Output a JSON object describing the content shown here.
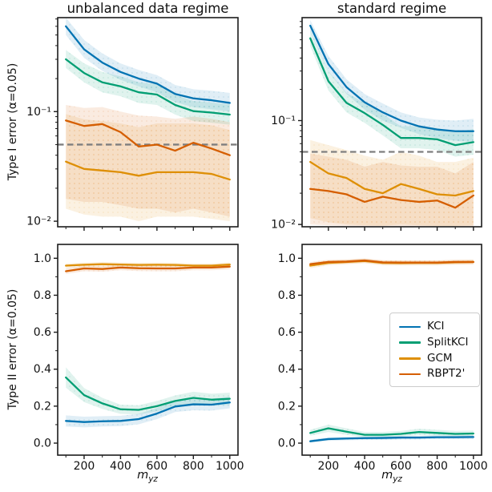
{
  "figure": {
    "xlabel": {
      "main": "m",
      "sub": "yz"
    },
    "alpha_threshold": 0.05,
    "colors": {
      "kci": "#0173b2",
      "splitkci": "#029e73",
      "gcm": "#de8f05",
      "rbpt2": "#d55e00",
      "alpha_dashed_line": "#7f7f7f",
      "axes": "#1c1c1c"
    }
  },
  "legend": {
    "entries": [
      {
        "label": "KCI",
        "color": "#0173b2"
      },
      {
        "label": "SplitKCI",
        "color": "#029e73"
      },
      {
        "label": "GCM",
        "color": "#de8f05"
      },
      {
        "label": "RBPT2'",
        "color": "#d55e00"
      }
    ]
  },
  "chart_data": [
    {
      "panel": "tl",
      "type": "line",
      "title": "unbalanced data regime",
      "ylabel": "Type I error (α=0.05)",
      "yscale": "log",
      "xlim": [
        55,
        1045
      ],
      "ylim": [
        0.0089,
        0.72
      ],
      "x": [
        100,
        200,
        300,
        400,
        500,
        600,
        700,
        800,
        900,
        1000
      ],
      "xticks": [
        200,
        400,
        600,
        800,
        1000
      ],
      "xminorticks": [
        100,
        300,
        500,
        700,
        900
      ],
      "xtick_labels": null,
      "yticks": [
        0.1,
        0.01
      ],
      "ytick_labels": [
        "10⁻¹",
        "10⁻²"
      ],
      "alpha_line": 0.05,
      "series": [
        {
          "name": "KCI",
          "color": "#0173b2",
          "values": [
            0.6,
            0.37,
            0.28,
            0.23,
            0.2,
            0.18,
            0.145,
            0.132,
            0.127,
            0.12
          ],
          "band_lower": [
            0.5,
            0.31,
            0.235,
            0.195,
            0.17,
            0.15,
            0.122,
            0.11,
            0.105,
            0.1
          ],
          "band_upper": [
            0.72,
            0.45,
            0.34,
            0.275,
            0.24,
            0.215,
            0.175,
            0.16,
            0.155,
            0.148
          ]
        },
        {
          "name": "SplitKCI",
          "color": "#029e73",
          "values": [
            0.3,
            0.225,
            0.185,
            0.17,
            0.15,
            0.143,
            0.115,
            0.101,
            0.098,
            0.094
          ],
          "band_lower": [
            0.25,
            0.185,
            0.15,
            0.138,
            0.12,
            0.115,
            0.094,
            0.082,
            0.079,
            0.076
          ],
          "band_upper": [
            0.365,
            0.275,
            0.23,
            0.21,
            0.185,
            0.178,
            0.142,
            0.125,
            0.121,
            0.117
          ]
        },
        {
          "name": "GCM",
          "color": "#de8f05",
          "values": [
            0.035,
            0.03,
            0.029,
            0.028,
            0.026,
            0.028,
            0.028,
            0.028,
            0.027,
            0.024
          ],
          "band_lower": [
            0.013,
            0.0115,
            0.011,
            0.011,
            0.01,
            0.011,
            0.011,
            0.011,
            0.0105,
            0.01
          ],
          "band_upper": [
            0.095,
            0.085,
            0.082,
            0.078,
            0.072,
            0.078,
            0.078,
            0.078,
            0.075,
            0.068
          ]
        },
        {
          "name": "RBPT2'",
          "color": "#d55e00",
          "values": [
            0.083,
            0.074,
            0.077,
            0.065,
            0.048,
            0.05,
            0.044,
            0.052,
            0.046,
            0.04
          ],
          "band_lower": [
            0.016,
            0.015,
            0.015,
            0.014,
            0.013,
            0.013,
            0.012,
            0.013,
            0.012,
            0.011
          ],
          "band_upper": [
            0.115,
            0.108,
            0.11,
            0.1,
            0.092,
            0.09,
            0.086,
            0.09,
            0.086,
            0.08
          ]
        }
      ]
    },
    {
      "panel": "tr",
      "type": "line",
      "title": "standard regime",
      "ylabel": "",
      "yscale": "log",
      "xlim": [
        55,
        1045
      ],
      "ylim": [
        0.0095,
        0.98
      ],
      "x": [
        100,
        200,
        300,
        400,
        500,
        600,
        700,
        800,
        900,
        1000
      ],
      "xticks": [
        200,
        400,
        600,
        800,
        1000
      ],
      "xminorticks": [
        100,
        300,
        500,
        700,
        900
      ],
      "xtick_labels": null,
      "yticks": [
        0.1,
        0.01
      ],
      "ytick_labels": [
        "10⁻¹",
        "10⁻²"
      ],
      "alpha_line": 0.05,
      "series": [
        {
          "name": "KCI",
          "color": "#0173b2",
          "values": [
            0.82,
            0.35,
            0.21,
            0.15,
            0.12,
            0.1,
            0.088,
            0.082,
            0.079,
            0.079
          ],
          "band_lower": [
            0.72,
            0.295,
            0.18,
            0.128,
            0.1,
            0.085,
            0.074,
            0.068,
            0.064,
            0.062
          ],
          "band_upper": [
            0.93,
            0.42,
            0.25,
            0.18,
            0.146,
            0.12,
            0.107,
            0.102,
            0.1,
            0.104
          ]
        },
        {
          "name": "SplitKCI",
          "color": "#029e73",
          "values": [
            0.62,
            0.24,
            0.148,
            0.118,
            0.091,
            0.068,
            0.068,
            0.066,
            0.058,
            0.062
          ],
          "band_lower": [
            0.52,
            0.195,
            0.12,
            0.095,
            0.072,
            0.054,
            0.054,
            0.052,
            0.045,
            0.047
          ],
          "band_upper": [
            0.74,
            0.3,
            0.185,
            0.148,
            0.116,
            0.088,
            0.088,
            0.085,
            0.077,
            0.083
          ]
        },
        {
          "name": "GCM",
          "color": "#de8f05",
          "values": [
            0.04,
            0.031,
            0.028,
            0.022,
            0.02,
            0.0245,
            0.022,
            0.0195,
            0.019,
            0.021
          ],
          "band_lower": [
            0.0115,
            0.0105,
            0.01,
            0.0098,
            0.0097,
            0.01,
            0.0098,
            0.0097,
            0.0097,
            0.0098
          ],
          "band_upper": [
            0.065,
            0.058,
            0.052,
            0.046,
            0.042,
            0.05,
            0.046,
            0.04,
            0.04,
            0.044
          ]
        },
        {
          "name": "RBPT2'",
          "color": "#d55e00",
          "values": [
            0.022,
            0.021,
            0.0195,
            0.0165,
            0.0185,
            0.0172,
            0.0165,
            0.017,
            0.0145,
            0.019
          ],
          "band_lower": [
            0.01,
            0.0098,
            0.0097,
            0.0096,
            0.0097,
            0.0096,
            0.0096,
            0.0096,
            0.0096,
            0.0096
          ],
          "band_upper": [
            0.048,
            0.045,
            0.042,
            0.036,
            0.04,
            0.037,
            0.036,
            0.036,
            0.031,
            0.04
          ]
        }
      ]
    },
    {
      "panel": "bl",
      "type": "line",
      "title": "",
      "ylabel": "Type II error (α=0.05)",
      "yscale": "linear",
      "xlim": [
        55,
        1045
      ],
      "ylim": [
        -0.065,
        1.075
      ],
      "x": [
        100,
        200,
        300,
        400,
        500,
        600,
        700,
        800,
        900,
        1000
      ],
      "xticks": [
        200,
        400,
        600,
        800,
        1000
      ],
      "xminorticks": [
        100,
        300,
        500,
        700,
        900
      ],
      "xtick_labels": [
        "200",
        "400",
        "600",
        "800",
        "1000"
      ],
      "yticks": [
        0.0,
        0.2,
        0.4,
        0.6,
        0.8,
        1.0
      ],
      "ytick_labels": [
        "0.0",
        "0.2",
        "0.4",
        "0.6",
        "0.8",
        "1.0"
      ],
      "yminorticks": [
        0.1,
        0.3,
        0.5,
        0.7,
        0.9
      ],
      "alpha_line": null,
      "series": [
        {
          "name": "KCI",
          "color": "#0173b2",
          "values": [
            0.12,
            0.114,
            0.118,
            0.12,
            0.13,
            0.16,
            0.198,
            0.21,
            0.208,
            0.22
          ],
          "band_lower": [
            0.09,
            0.085,
            0.09,
            0.092,
            0.102,
            0.13,
            0.168,
            0.178,
            0.176,
            0.188
          ],
          "band_upper": [
            0.15,
            0.143,
            0.146,
            0.148,
            0.158,
            0.19,
            0.228,
            0.242,
            0.24,
            0.252
          ]
        },
        {
          "name": "SplitKCI",
          "color": "#029e73",
          "values": [
            0.355,
            0.26,
            0.215,
            0.183,
            0.18,
            0.2,
            0.228,
            0.245,
            0.235,
            0.24
          ],
          "band_lower": [
            0.3,
            0.222,
            0.185,
            0.158,
            0.155,
            0.172,
            0.198,
            0.212,
            0.203,
            0.207
          ],
          "band_upper": [
            0.41,
            0.298,
            0.245,
            0.208,
            0.205,
            0.228,
            0.258,
            0.278,
            0.267,
            0.273
          ]
        },
        {
          "name": "GCM",
          "color": "#de8f05",
          "values": [
            0.96,
            0.965,
            0.968,
            0.966,
            0.964,
            0.965,
            0.964,
            0.96,
            0.96,
            0.966
          ],
          "band_lower": [
            0.947,
            0.952,
            0.955,
            0.953,
            0.951,
            0.952,
            0.951,
            0.947,
            0.947,
            0.953
          ],
          "band_upper": [
            0.972,
            0.977,
            0.98,
            0.978,
            0.976,
            0.977,
            0.976,
            0.972,
            0.972,
            0.978
          ]
        },
        {
          "name": "RBPT2'",
          "color": "#d55e00",
          "values": [
            0.93,
            0.945,
            0.942,
            0.95,
            0.946,
            0.945,
            0.945,
            0.95,
            0.95,
            0.955
          ],
          "band_lower": [
            0.915,
            0.93,
            0.927,
            0.935,
            0.931,
            0.93,
            0.93,
            0.935,
            0.935,
            0.94
          ],
          "band_upper": [
            0.945,
            0.96,
            0.957,
            0.965,
            0.961,
            0.96,
            0.96,
            0.965,
            0.965,
            0.97
          ]
        }
      ]
    },
    {
      "panel": "br",
      "type": "line",
      "title": "",
      "ylabel": "",
      "yscale": "linear",
      "xlim": [
        55,
        1045
      ],
      "ylim": [
        -0.065,
        1.075
      ],
      "x": [
        100,
        200,
        300,
        400,
        500,
        600,
        700,
        800,
        900,
        1000
      ],
      "xticks": [
        200,
        400,
        600,
        800,
        1000
      ],
      "xminorticks": [
        100,
        300,
        500,
        700,
        900
      ],
      "xtick_labels": [
        "200",
        "400",
        "600",
        "800",
        "1000"
      ],
      "yticks": [
        0.0,
        0.2,
        0.4,
        0.6,
        0.8,
        1.0
      ],
      "ytick_labels": [
        "0.0",
        "0.2",
        "0.4",
        "0.6",
        "0.8",
        "1.0"
      ],
      "yminorticks": [
        0.1,
        0.3,
        0.5,
        0.7,
        0.9
      ],
      "alpha_line": null,
      "series": [
        {
          "name": "KCI",
          "color": "#0173b2",
          "values": [
            0.01,
            0.022,
            0.025,
            0.027,
            0.028,
            0.03,
            0.03,
            0.032,
            0.032,
            0.033
          ],
          "band_lower": [
            0.004,
            0.012,
            0.015,
            0.017,
            0.018,
            0.02,
            0.02,
            0.022,
            0.022,
            0.022
          ],
          "band_upper": [
            0.018,
            0.032,
            0.035,
            0.037,
            0.038,
            0.04,
            0.04,
            0.042,
            0.042,
            0.044
          ]
        },
        {
          "name": "SplitKCI",
          "color": "#029e73",
          "values": [
            0.055,
            0.08,
            0.062,
            0.045,
            0.045,
            0.05,
            0.06,
            0.055,
            0.05,
            0.052
          ],
          "band_lower": [
            0.04,
            0.06,
            0.045,
            0.032,
            0.032,
            0.036,
            0.044,
            0.04,
            0.036,
            0.038
          ],
          "band_upper": [
            0.072,
            0.1,
            0.08,
            0.06,
            0.06,
            0.066,
            0.078,
            0.072,
            0.066,
            0.068
          ]
        },
        {
          "name": "GCM",
          "color": "#de8f05",
          "values": [
            0.96,
            0.975,
            0.98,
            0.985,
            0.975,
            0.974,
            0.975,
            0.975,
            0.978,
            0.98
          ],
          "band_lower": [
            0.946,
            0.962,
            0.968,
            0.973,
            0.962,
            0.961,
            0.962,
            0.962,
            0.965,
            0.967
          ],
          "band_upper": [
            0.974,
            0.988,
            0.992,
            0.997,
            0.988,
            0.987,
            0.988,
            0.988,
            0.991,
            0.993
          ]
        },
        {
          "name": "RBPT2'",
          "color": "#d55e00",
          "values": [
            0.968,
            0.98,
            0.982,
            0.988,
            0.978,
            0.977,
            0.977,
            0.977,
            0.98,
            0.98
          ],
          "band_lower": [
            0.956,
            0.968,
            0.97,
            0.976,
            0.966,
            0.965,
            0.965,
            0.965,
            0.968,
            0.968
          ],
          "band_upper": [
            0.98,
            0.992,
            0.994,
            1.0,
            0.99,
            0.989,
            0.989,
            0.989,
            0.992,
            0.992
          ]
        }
      ]
    }
  ]
}
